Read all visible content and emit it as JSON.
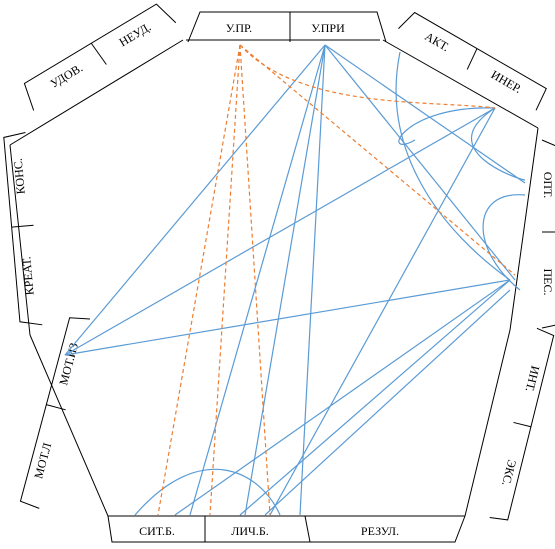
{
  "colors": {
    "solid_link": "#5b9bd5",
    "dashed_link": "#ed7d31",
    "frame": "#000000"
  },
  "labels": {
    "u_pr": "У.ПР.",
    "u_pri": "У.ПРИ",
    "akt": "АКТ.",
    "iner": "ИНЕР.",
    "opt": "ОПТ.",
    "pes": "ПЕС.",
    "int": "ИНТ.",
    "eks": "ЭКС.",
    "rezul": "РЕЗУЛ.",
    "lich_b": "ЛИЧ.Б.",
    "sit_b": "СИТ.Б.",
    "mot_l": "МОТ.Л",
    "mot_iz": "МОТ.ИЗ",
    "kreat": "КРЕАТ.",
    "kons": "КОНС.",
    "udov": "УДОВ.",
    "neud": "НЕУД."
  }
}
